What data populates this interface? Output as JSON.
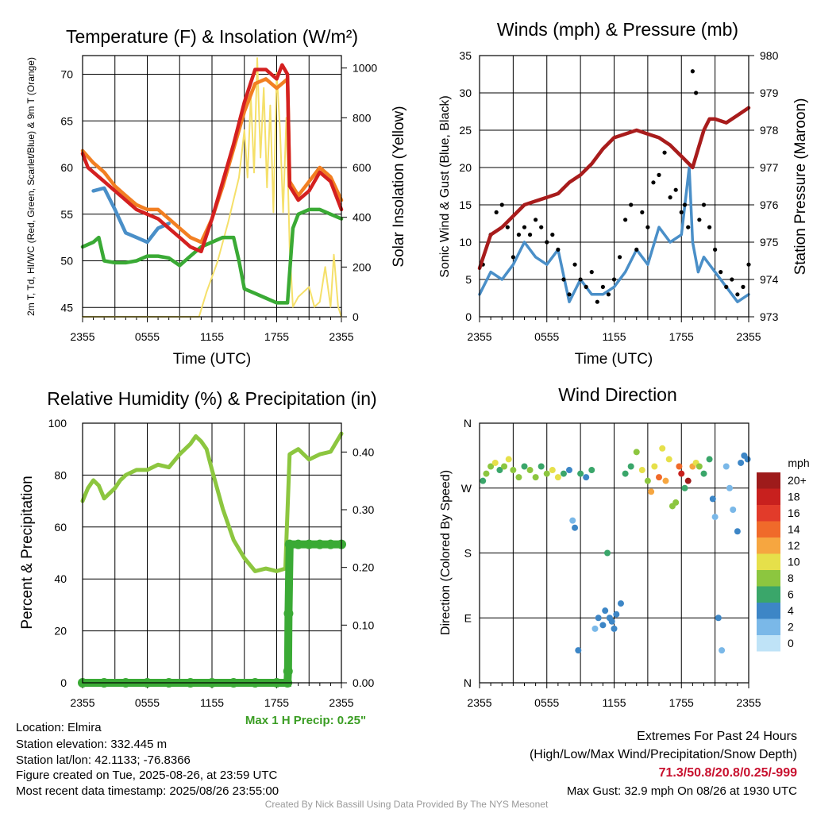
{
  "chart_data": [
    {
      "type": "line",
      "title": "Temperature (F) & Insolation (W/m²)",
      "xlabel": "Time (UTC)",
      "ylabel_left": "2m T, Td, HI/WC (Red, Green, Scarlet/Blue) & 9m T (Orange)",
      "ylabel_right": "Solar Insolation (Yellow)",
      "x_ticks": [
        "2355",
        "0555",
        "1155",
        "1755",
        "2355"
      ],
      "y_ticks_left": [
        45,
        50,
        55,
        60,
        65,
        70
      ],
      "y_ticks_right": [
        0,
        200,
        400,
        600,
        800,
        1000
      ],
      "ylim_left": [
        44,
        72
      ],
      "ylim_right": [
        0,
        1050
      ],
      "xlim": [
        0,
        24
      ],
      "series": [
        {
          "name": "2m T",
          "color": "#d42020",
          "axis": "left",
          "x": [
            0,
            0.5,
            1,
            2,
            3,
            4,
            5,
            6,
            7,
            8,
            9,
            10,
            11,
            12,
            13,
            14,
            15,
            16,
            17,
            18,
            18.5,
            19,
            19.2,
            20,
            21,
            22,
            23,
            24
          ],
          "y": [
            61.5,
            60,
            59.5,
            58.5,
            57.5,
            56.5,
            55.5,
            55,
            54.5,
            53.5,
            52.5,
            51.5,
            51,
            54.5,
            58.5,
            62.5,
            67,
            70.5,
            70.5,
            69.5,
            71,
            70,
            58,
            56.5,
            57.5,
            59.5,
            58.5,
            55.5
          ]
        },
        {
          "name": "9m T",
          "color": "#f27f22",
          "axis": "left",
          "x": [
            0,
            1,
            2,
            3,
            4,
            5,
            6,
            7,
            8,
            9,
            10,
            11,
            12,
            13,
            14,
            15,
            16,
            17,
            18,
            19,
            19.2,
            20,
            21,
            22,
            23,
            24
          ],
          "y": [
            61.8,
            60.5,
            59.5,
            58,
            57,
            56,
            55.5,
            55.5,
            54.5,
            53.5,
            52.5,
            52,
            54.5,
            58,
            62,
            66,
            69,
            69.5,
            68.5,
            69.5,
            58.5,
            57,
            58.5,
            60,
            59,
            56.5
          ]
        },
        {
          "name": "HI/WC",
          "color": "#4a8fc8",
          "axis": "left",
          "x": [
            1,
            2,
            3,
            4,
            5,
            6,
            7,
            8
          ],
          "y": [
            57.5,
            57.8,
            55.5,
            53,
            52.5,
            52,
            53.5,
            54
          ]
        },
        {
          "name": "Td",
          "color": "#3aaa35",
          "axis": "left",
          "x": [
            0,
            1,
            1.5,
            2,
            3,
            4,
            5,
            6,
            7,
            8,
            9,
            10,
            11,
            12,
            13,
            14,
            14.5,
            15,
            16,
            17,
            18,
            19,
            19.5,
            20,
            21,
            22,
            23,
            24
          ],
          "y": [
            51.5,
            52,
            52.5,
            50,
            49.8,
            49.8,
            50,
            50.5,
            50.5,
            50.3,
            49.5,
            50.5,
            51.5,
            52,
            52.5,
            52.5,
            50,
            47,
            46.5,
            46,
            45.5,
            45.5,
            53.5,
            55,
            55.5,
            55.5,
            55,
            54.5
          ]
        },
        {
          "name": "Solar Insolation",
          "color": "#f5e06a",
          "axis": "right",
          "x": [
            0,
            10.8,
            11.5,
            12.5,
            13.5,
            14.5,
            15,
            15.3,
            15.6,
            15.9,
            16.2,
            16.5,
            16.8,
            17.1,
            17.4,
            17.7,
            18,
            18.3,
            18.6,
            18.9,
            19.2,
            19.5,
            20,
            21,
            21.5,
            22,
            22.5,
            23,
            23.3,
            23.7,
            24
          ],
          "y": [
            0,
            0,
            100,
            220,
            380,
            560,
            750,
            560,
            890,
            580,
            1040,
            640,
            920,
            520,
            850,
            420,
            980,
            760,
            420,
            800,
            280,
            40,
            80,
            120,
            40,
            60,
            200,
            40,
            250,
            40,
            0
          ]
        }
      ]
    },
    {
      "type": "scatter",
      "title": "Winds (mph) & Pressure (mb)",
      "xlabel": "Time (UTC)",
      "ylabel_left": "Sonic Wind & Gust (Blue, Black)",
      "ylabel_right": "Station Pressure (Maroon)",
      "x_ticks": [
        "2355",
        "0555",
        "1155",
        "1755",
        "2355"
      ],
      "y_ticks_left": [
        0,
        5,
        10,
        15,
        20,
        25,
        30,
        35
      ],
      "y_ticks_right": [
        973,
        974,
        975,
        976,
        977,
        978,
        979,
        980
      ],
      "ylim_left": [
        0,
        35
      ],
      "ylim_right": [
        973,
        980
      ],
      "xlim": [
        0,
        24
      ],
      "series": [
        {
          "name": "Station Pressure",
          "color": "#a81c1c",
          "axis": "right",
          "style": "line",
          "x": [
            0,
            1,
            2,
            3,
            4,
            5,
            6,
            7,
            8,
            9,
            10,
            11,
            12,
            13,
            14,
            15,
            16,
            17,
            18,
            19,
            19.5,
            20,
            20.5,
            21,
            22,
            23,
            24
          ],
          "y": [
            974.3,
            975.2,
            975.4,
            975.7,
            976,
            976.1,
            976.2,
            976.3,
            976.6,
            976.8,
            977.1,
            977.5,
            977.8,
            977.9,
            978,
            977.9,
            977.8,
            977.6,
            977.3,
            977.0,
            977.5,
            978.0,
            978.3,
            978.3,
            978.2,
            978.4,
            978.6
          ]
        },
        {
          "name": "Sonic Wind",
          "color": "#4a8fc8",
          "axis": "left",
          "style": "line",
          "x": [
            0,
            1,
            2,
            3,
            4,
            5,
            6,
            7,
            8,
            9,
            10,
            11,
            12,
            13,
            14,
            15,
            16,
            17,
            18,
            18.7,
            19,
            19.5,
            20,
            21,
            22,
            23,
            24
          ],
          "y": [
            3,
            6,
            5,
            7,
            10,
            8,
            7,
            9,
            2,
            5,
            3,
            3,
            4,
            6,
            9,
            7,
            12,
            10,
            11,
            20,
            10,
            6,
            8,
            6,
            4,
            2,
            3
          ]
        },
        {
          "name": "Gust",
          "color": "#000000",
          "axis": "left",
          "style": "markers",
          "x": [
            0.3,
            1,
            1.5,
            2,
            2.5,
            3,
            3.5,
            4,
            4.5,
            5,
            5.5,
            6,
            6.5,
            7,
            7.5,
            8,
            8.5,
            9,
            9.5,
            10,
            10.5,
            11,
            11.5,
            12,
            12.5,
            13,
            13.5,
            14,
            14.5,
            15,
            15.5,
            16,
            16.5,
            17,
            17.5,
            18,
            18.3,
            18.6,
            19,
            19.3,
            19.6,
            20,
            20.5,
            21,
            21.5,
            22,
            22.5,
            23,
            23.5,
            24
          ],
          "y": [
            7,
            11,
            14,
            15,
            12,
            8,
            11,
            12,
            11,
            13,
            12,
            10,
            11,
            9,
            5,
            3,
            7,
            5,
            4,
            6,
            2,
            4,
            3,
            5,
            8,
            13,
            15,
            9,
            14,
            12,
            18,
            19,
            22,
            16,
            17,
            14,
            15,
            12,
            32.9,
            30,
            13,
            15,
            12,
            9,
            6,
            4,
            5,
            3,
            4,
            7
          ]
        }
      ]
    },
    {
      "type": "line",
      "title": "Relative Humidity (%) & Precipitation (in)",
      "ylabel": "Percent & Precipitation",
      "x_ticks": [
        "2355",
        "0555",
        "1155",
        "1755",
        "2355"
      ],
      "y_ticks_left": [
        0,
        20,
        40,
        60,
        80,
        100
      ],
      "y_ticks_right": [
        "0.00",
        "0.10",
        "0.20",
        "0.30",
        "0.40"
      ],
      "ylim_left": [
        0,
        100
      ],
      "ylim_right": [
        0,
        0.45
      ],
      "xlim": [
        0,
        24
      ],
      "annotation": "Max 1 H Precip: 0.25\"",
      "series": [
        {
          "name": "Relative Humidity",
          "color": "#8cc63f",
          "axis": "left",
          "x": [
            0,
            0.5,
            1,
            1.5,
            2,
            2.5,
            3,
            3.5,
            4,
            5,
            6,
            7,
            8,
            9,
            10,
            10.5,
            11,
            11.5,
            12,
            13,
            14,
            15,
            16,
            17,
            18,
            18.8,
            19.2,
            20,
            21,
            22,
            23,
            24
          ],
          "y": [
            70,
            75,
            78,
            76,
            71,
            73,
            75,
            78,
            80,
            82,
            82,
            84,
            83,
            88,
            92,
            95,
            93,
            90,
            82,
            67,
            55,
            48,
            43,
            44,
            43,
            44,
            88,
            90,
            86,
            88,
            89,
            96
          ]
        },
        {
          "name": "Precipitation",
          "color": "#3aaa35",
          "axis": "right",
          "x": [
            0,
            2,
            4,
            6,
            8,
            10,
            12,
            14,
            16,
            18,
            19,
            19.05,
            19.1,
            19.2,
            20,
            21,
            22,
            23,
            24
          ],
          "y": [
            0,
            0,
            0,
            0,
            0,
            0,
            0,
            0,
            0,
            0,
            0,
            0.02,
            0.12,
            0.24,
            0.24,
            0.24,
            0.24,
            0.24,
            0.24
          ]
        }
      ]
    },
    {
      "type": "scatter",
      "title": "Wind Direction",
      "ylabel": "Direction (Colored By Speed)",
      "x_ticks": [
        "2355",
        "0555",
        "1155",
        "1755",
        "2355"
      ],
      "y_ticks": [
        "N",
        "E",
        "S",
        "W",
        "N"
      ],
      "ylim": [
        0,
        360
      ],
      "xlim": [
        0,
        24
      ],
      "legend_title": "mph",
      "legend_labels": [
        "20+",
        "18",
        "16",
        "14",
        "12",
        "10",
        "8",
        "6",
        "4",
        "2",
        "0"
      ],
      "legend_colors": [
        "#9e1b1b",
        "#c8201e",
        "#e23b2a",
        "#f06a2a",
        "#f6a640",
        "#e6e04a",
        "#8cc63f",
        "#3aa66a",
        "#3d86c6",
        "#7ab8e8",
        "#bfe3f7"
      ],
      "points": [
        {
          "x": 0.3,
          "y": 280,
          "s": 5
        },
        {
          "x": 0.6,
          "y": 290,
          "s": 7
        },
        {
          "x": 1.0,
          "y": 300,
          "s": 8
        },
        {
          "x": 1.4,
          "y": 305,
          "s": 10
        },
        {
          "x": 1.8,
          "y": 295,
          "s": 6
        },
        {
          "x": 2.2,
          "y": 300,
          "s": 8
        },
        {
          "x": 2.6,
          "y": 310,
          "s": 9
        },
        {
          "x": 3.0,
          "y": 295,
          "s": 7
        },
        {
          "x": 3.5,
          "y": 285,
          "s": 8
        },
        {
          "x": 4.0,
          "y": 300,
          "s": 6
        },
        {
          "x": 4.5,
          "y": 295,
          "s": 7
        },
        {
          "x": 5.0,
          "y": 285,
          "s": 8
        },
        {
          "x": 5.5,
          "y": 300,
          "s": 5
        },
        {
          "x": 6.0,
          "y": 290,
          "s": 7
        },
        {
          "x": 6.5,
          "y": 295,
          "s": 9
        },
        {
          "x": 7.0,
          "y": 285,
          "s": 10
        },
        {
          "x": 7.5,
          "y": 290,
          "s": 6
        },
        {
          "x": 8.0,
          "y": 295,
          "s": 3
        },
        {
          "x": 8.3,
          "y": 225,
          "s": 2
        },
        {
          "x": 8.5,
          "y": 215,
          "s": 3
        },
        {
          "x": 8.8,
          "y": 45,
          "s": 3
        },
        {
          "x": 9.0,
          "y": 290,
          "s": 5
        },
        {
          "x": 9.5,
          "y": 285,
          "s": 4
        },
        {
          "x": 10.0,
          "y": 295,
          "s": 5
        },
        {
          "x": 10.3,
          "y": 75,
          "s": 2
        },
        {
          "x": 10.6,
          "y": 90,
          "s": 3
        },
        {
          "x": 11.0,
          "y": 80,
          "s": 4
        },
        {
          "x": 11.2,
          "y": 100,
          "s": 4
        },
        {
          "x": 11.4,
          "y": 180,
          "s": 5
        },
        {
          "x": 11.6,
          "y": 90,
          "s": 4
        },
        {
          "x": 11.8,
          "y": 85,
          "s": 4
        },
        {
          "x": 12.0,
          "y": 75,
          "s": 3
        },
        {
          "x": 12.2,
          "y": 95,
          "s": 3
        },
        {
          "x": 12.6,
          "y": 110,
          "s": 4
        },
        {
          "x": 13.0,
          "y": 290,
          "s": 5
        },
        {
          "x": 13.5,
          "y": 300,
          "s": 6
        },
        {
          "x": 14.0,
          "y": 320,
          "s": 7
        },
        {
          "x": 14.5,
          "y": 295,
          "s": 10
        },
        {
          "x": 15.0,
          "y": 280,
          "s": 8
        },
        {
          "x": 15.3,
          "y": 265,
          "s": 12
        },
        {
          "x": 15.6,
          "y": 300,
          "s": 9
        },
        {
          "x": 16.0,
          "y": 285,
          "s": 13
        },
        {
          "x": 16.3,
          "y": 325,
          "s": 10
        },
        {
          "x": 16.6,
          "y": 280,
          "s": 11
        },
        {
          "x": 16.9,
          "y": 310,
          "s": 9
        },
        {
          "x": 17.2,
          "y": 245,
          "s": 8
        },
        {
          "x": 17.5,
          "y": 250,
          "s": 7
        },
        {
          "x": 17.8,
          "y": 300,
          "s": 14
        },
        {
          "x": 18.0,
          "y": 290,
          "s": 18
        },
        {
          "x": 18.3,
          "y": 270,
          "s": 6
        },
        {
          "x": 18.6,
          "y": 280,
          "s": 20
        },
        {
          "x": 19.0,
          "y": 300,
          "s": 12
        },
        {
          "x": 19.3,
          "y": 305,
          "s": 9
        },
        {
          "x": 19.6,
          "y": 300,
          "s": 7
        },
        {
          "x": 20.0,
          "y": 290,
          "s": 6
        },
        {
          "x": 20.5,
          "y": 310,
          "s": 6
        },
        {
          "x": 20.8,
          "y": 255,
          "s": 3
        },
        {
          "x": 21.0,
          "y": 230,
          "s": 2
        },
        {
          "x": 21.3,
          "y": 90,
          "s": 3
        },
        {
          "x": 21.6,
          "y": 45,
          "s": 2
        },
        {
          "x": 22.0,
          "y": 300,
          "s": 1
        },
        {
          "x": 22.3,
          "y": 270,
          "s": 2
        },
        {
          "x": 22.6,
          "y": 240,
          "s": 2
        },
        {
          "x": 23.0,
          "y": 210,
          "s": 3
        },
        {
          "x": 23.3,
          "y": 305,
          "s": 3
        },
        {
          "x": 23.6,
          "y": 315,
          "s": 4
        },
        {
          "x": 23.9,
          "y": 310,
          "s": 4
        }
      ]
    }
  ],
  "info": {
    "location": "Location: Elmira",
    "elevation": "Station elevation: 332.445 m",
    "latlon": "Station lat/lon: 42.1133; -76.8366",
    "created": "Figure created on Tue, 2025-08-26, at 23:59 UTC",
    "recent": "Most recent data timestamp: 2025/08/26 23:55:00",
    "extremes_title": "Extremes For Past 24 Hours",
    "extremes_sub": "(High/Low/Max Wind/Precipitation/Snow Depth)",
    "extremes_values": "71.3/50.8/20.8/0.25/-999",
    "max_gust": "Max Gust: 32.9 mph On 08/26 at 1930 UTC",
    "credit": "Created By Nick Bassill Using Data Provided By The NYS Mesonet"
  }
}
